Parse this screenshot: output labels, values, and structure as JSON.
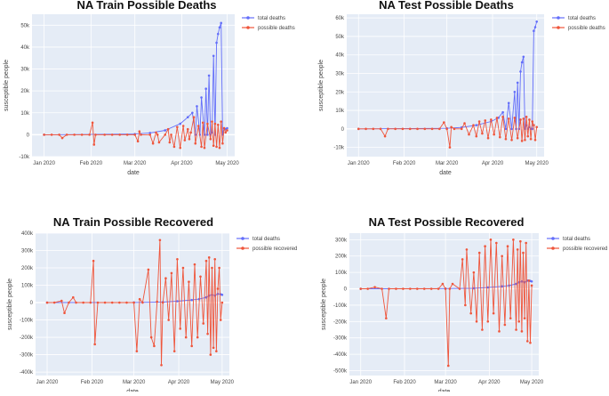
{
  "colors": {
    "plot_bg": "#e5ecf6",
    "grid": "#ffffff",
    "total_deaths": "#636efa",
    "possible": "#ef553b"
  },
  "chart_data": [
    {
      "type": "line",
      "title": "NA Train Possible Deaths",
      "xlabel": "date",
      "ylabel": "susceptible people",
      "xlim": [
        -8,
        126
      ],
      "ylim": [
        -10000,
        55000
      ],
      "xticks": [
        {
          "v": 0,
          "label": "Jan 2020"
        },
        {
          "v": 31,
          "label": "Feb 2020"
        },
        {
          "v": 60,
          "label": "Mar 2020"
        },
        {
          "v": 91,
          "label": "Apr 2020"
        },
        {
          "v": 121,
          "label": "May 2020"
        }
      ],
      "yticks": [
        {
          "v": -10000,
          "label": "-10k"
        },
        {
          "v": 0,
          "label": "0"
        },
        {
          "v": 10000,
          "label": "10k"
        },
        {
          "v": 20000,
          "label": "20k"
        },
        {
          "v": 30000,
          "label": "30k"
        },
        {
          "v": 40000,
          "label": "40k"
        },
        {
          "v": 50000,
          "label": "50k"
        }
      ],
      "series": [
        {
          "name": "total deaths",
          "x": [
            0,
            60,
            70,
            80,
            90,
            95,
            98,
            100,
            101,
            103,
            104,
            106,
            107,
            108,
            109,
            110,
            111,
            112,
            113,
            114,
            115,
            116,
            117,
            118,
            119,
            120,
            121
          ],
          "y": [
            0,
            300,
            800,
            2000,
            5000,
            8000,
            10000,
            0,
            13000,
            0,
            17000,
            0,
            21000,
            0,
            27000,
            0,
            1000,
            36000,
            0,
            42000,
            46000,
            49000,
            51000,
            0,
            3000,
            2500,
            3000
          ]
        },
        {
          "name": "possible deaths",
          "x": [
            0,
            5,
            10,
            12,
            15,
            20,
            25,
            30,
            32,
            33,
            34,
            40,
            45,
            50,
            55,
            60,
            62,
            63,
            64,
            70,
            72,
            74,
            75,
            76,
            80,
            82,
            83,
            84,
            86,
            88,
            90,
            92,
            93,
            95,
            96,
            97,
            99,
            100,
            102,
            104,
            105,
            106,
            108,
            110,
            111,
            112,
            113,
            114,
            115,
            116,
            117,
            118,
            119,
            120,
            121
          ],
          "y": [
            0,
            0,
            0,
            -1500,
            0,
            0,
            0,
            0,
            5500,
            -4500,
            0,
            0,
            0,
            0,
            0,
            0,
            -3000,
            1500,
            0,
            0,
            -4000,
            1000,
            0,
            -3500,
            0,
            2500,
            -3500,
            0,
            -5500,
            3500,
            -6000,
            4000,
            -2500,
            2500,
            -2000,
            1000,
            8000,
            -4000,
            4000,
            -5500,
            5500,
            -6000,
            5000,
            -2000,
            6000,
            -5000,
            5000,
            -5500,
            4500,
            -6000,
            6000,
            -4000,
            3000,
            1000,
            2000
          ]
        }
      ]
    },
    {
      "type": "line",
      "title": "NA Test Possible Deaths",
      "xlabel": "date",
      "ylabel": "susceptible people",
      "xlim": [
        -8,
        126
      ],
      "ylim": [
        -15000,
        62000
      ],
      "xticks": [
        {
          "v": 0,
          "label": "Jan 2020"
        },
        {
          "v": 31,
          "label": "Feb 2020"
        },
        {
          "v": 60,
          "label": "Mar 2020"
        },
        {
          "v": 91,
          "label": "Apr 2020"
        },
        {
          "v": 121,
          "label": "May 2020"
        }
      ],
      "yticks": [
        {
          "v": -10000,
          "label": "-10k"
        },
        {
          "v": 0,
          "label": "0"
        },
        {
          "v": 10000,
          "label": "10k"
        },
        {
          "v": 20000,
          "label": "20k"
        },
        {
          "v": 30000,
          "label": "30k"
        },
        {
          "v": 40000,
          "label": "40k"
        },
        {
          "v": 50000,
          "label": "50k"
        },
        {
          "v": 60000,
          "label": "60k"
        }
      ],
      "series": [
        {
          "name": "total deaths",
          "x": [
            0,
            60,
            70,
            80,
            90,
            95,
            98,
            100,
            102,
            104,
            106,
            107,
            108,
            109,
            110,
            111,
            112,
            113,
            114,
            115,
            116,
            117,
            118,
            119,
            120,
            121
          ],
          "y": [
            0,
            300,
            800,
            2000,
            4000,
            6000,
            9000,
            0,
            14000,
            0,
            20000,
            0,
            25000,
            0,
            31000,
            36000,
            39000,
            0,
            2000,
            0,
            1000,
            0,
            0,
            53000,
            55000,
            58000
          ]
        },
        {
          "name": "possible deaths",
          "x": [
            0,
            5,
            10,
            15,
            18,
            20,
            25,
            30,
            35,
            40,
            45,
            50,
            55,
            58,
            60,
            62,
            63,
            65,
            70,
            72,
            75,
            78,
            80,
            82,
            84,
            86,
            88,
            90,
            92,
            94,
            96,
            98,
            100,
            102,
            104,
            106,
            108,
            110,
            111,
            112,
            113,
            114,
            115,
            116,
            117,
            118,
            119,
            120,
            121
          ],
          "y": [
            0,
            0,
            0,
            0,
            -4000,
            0,
            0,
            0,
            0,
            0,
            0,
            0,
            0,
            3500,
            0,
            -10000,
            1000,
            0,
            0,
            3000,
            -3000,
            2000,
            -4000,
            4000,
            -2500,
            4500,
            -5000,
            5000,
            -3000,
            6000,
            -4500,
            6500,
            -5500,
            5500,
            -6000,
            6000,
            -5000,
            5000,
            -6500,
            5500,
            -6000,
            6500,
            -4000,
            5000,
            -5500,
            4000,
            2000,
            -6000,
            1000
          ]
        }
      ]
    },
    {
      "type": "line",
      "title": "NA Train Possible Recovered",
      "xlabel": "date",
      "ylabel": "susceptible people",
      "xlim": [
        -8,
        126
      ],
      "ylim": [
        -420000,
        400000
      ],
      "xticks": [
        {
          "v": 0,
          "label": "Jan 2020"
        },
        {
          "v": 31,
          "label": "Feb 2020"
        },
        {
          "v": 60,
          "label": "Mar 2020"
        },
        {
          "v": 91,
          "label": "Apr 2020"
        },
        {
          "v": 121,
          "label": "May 2020"
        }
      ],
      "yticks": [
        {
          "v": -400000,
          "label": "-400k"
        },
        {
          "v": -300000,
          "label": "-300k"
        },
        {
          "v": -200000,
          "label": "-200k"
        },
        {
          "v": -100000,
          "label": "-100k"
        },
        {
          "v": 0,
          "label": "0"
        },
        {
          "v": 100000,
          "label": "100k"
        },
        {
          "v": 200000,
          "label": "200k"
        },
        {
          "v": 300000,
          "label": "300k"
        },
        {
          "v": 400000,
          "label": "400k"
        }
      ],
      "series": [
        {
          "name": "total deaths",
          "x": [
            0,
            60,
            80,
            90,
            100,
            105,
            110,
            112,
            114,
            116,
            118,
            120,
            121
          ],
          "y": [
            0,
            1000,
            3000,
            8000,
            15000,
            20000,
            30000,
            40000,
            45000,
            40000,
            50000,
            48000,
            45000
          ]
        },
        {
          "name": "possible recovered",
          "x": [
            0,
            5,
            10,
            12,
            15,
            18,
            20,
            25,
            30,
            32,
            33,
            35,
            40,
            45,
            50,
            55,
            60,
            62,
            64,
            66,
            70,
            72,
            74,
            76,
            78,
            79,
            80,
            82,
            84,
            86,
            88,
            90,
            92,
            94,
            96,
            98,
            100,
            102,
            104,
            106,
            108,
            110,
            111,
            112,
            113,
            114,
            115,
            116,
            117,
            118,
            119,
            120,
            121
          ],
          "y": [
            0,
            0,
            10000,
            -60000,
            0,
            30000,
            0,
            0,
            0,
            240000,
            -240000,
            0,
            0,
            0,
            0,
            0,
            0,
            -280000,
            20000,
            0,
            190000,
            -200000,
            -250000,
            5000,
            360000,
            -360000,
            0,
            140000,
            -100000,
            170000,
            -280000,
            250000,
            -150000,
            200000,
            -200000,
            120000,
            -250000,
            220000,
            -200000,
            150000,
            -120000,
            240000,
            -180000,
            260000,
            -300000,
            200000,
            -260000,
            250000,
            -280000,
            80000,
            200000,
            -100000,
            0
          ]
        }
      ]
    },
    {
      "type": "line",
      "title": "NA Test Possible Recovered",
      "xlabel": "date",
      "ylabel": "susceptible people",
      "xlim": [
        -8,
        126
      ],
      "ylim": [
        -530000,
        340000
      ],
      "xticks": [
        {
          "v": 0,
          "label": "Jan 2020"
        },
        {
          "v": 31,
          "label": "Feb 2020"
        },
        {
          "v": 60,
          "label": "Mar 2020"
        },
        {
          "v": 91,
          "label": "Apr 2020"
        },
        {
          "v": 121,
          "label": "May 2020"
        }
      ],
      "yticks": [
        {
          "v": -500000,
          "label": "-500k"
        },
        {
          "v": -400000,
          "label": "-400k"
        },
        {
          "v": -300000,
          "label": "-300k"
        },
        {
          "v": -200000,
          "label": "-200k"
        },
        {
          "v": -100000,
          "label": "-100k"
        },
        {
          "v": 0,
          "label": "0"
        },
        {
          "v": 100000,
          "label": "100k"
        },
        {
          "v": 200000,
          "label": "200k"
        },
        {
          "v": 300000,
          "label": "300k"
        }
      ],
      "series": [
        {
          "name": "total deaths",
          "x": [
            0,
            60,
            80,
            90,
            100,
            105,
            110,
            112,
            114,
            116,
            118,
            120,
            121
          ],
          "y": [
            0,
            1000,
            3000,
            8000,
            15000,
            20000,
            30000,
            40000,
            45000,
            40000,
            50000,
            48000,
            45000
          ]
        },
        {
          "name": "possible recovered",
          "x": [
            0,
            5,
            10,
            15,
            18,
            20,
            25,
            30,
            35,
            40,
            45,
            50,
            55,
            58,
            60,
            62,
            63,
            65,
            70,
            72,
            74,
            75,
            78,
            80,
            82,
            84,
            86,
            88,
            90,
            92,
            94,
            96,
            98,
            100,
            102,
            104,
            106,
            108,
            110,
            111,
            112,
            113,
            114,
            115,
            116,
            117,
            118,
            119,
            120,
            121
          ],
          "y": [
            0,
            0,
            10000,
            0,
            -180000,
            0,
            0,
            0,
            0,
            0,
            0,
            0,
            0,
            30000,
            0,
            -470000,
            0,
            30000,
            0,
            180000,
            -100000,
            240000,
            -150000,
            100000,
            -200000,
            220000,
            -250000,
            260000,
            -200000,
            300000,
            -150000,
            280000,
            -260000,
            200000,
            -220000,
            260000,
            -180000,
            300000,
            -250000,
            240000,
            -200000,
            290000,
            -260000,
            220000,
            -180000,
            280000,
            -320000,
            50000,
            -330000,
            20000
          ]
        }
      ]
    }
  ]
}
